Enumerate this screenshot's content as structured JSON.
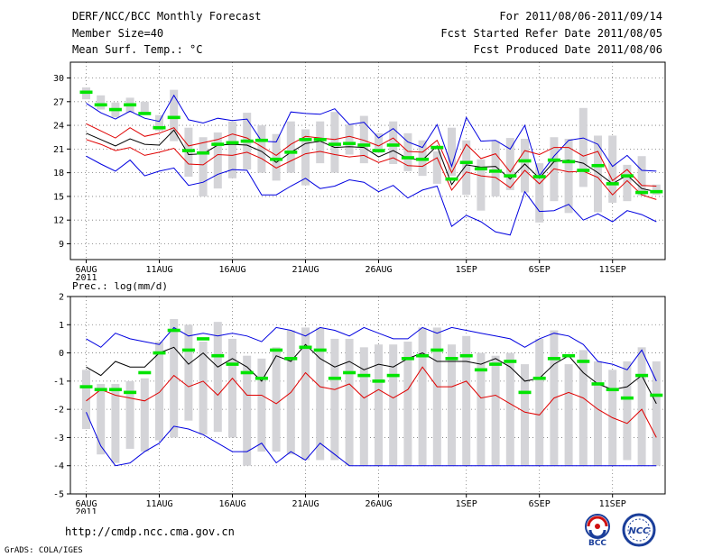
{
  "header": {
    "title": "DERF/NCC/BCC Monthly Forecast",
    "member_size": "Member Size=40",
    "variable": "Mean Surf. Temp.: °C",
    "forecast_period": "For 2011/08/06-2011/09/14",
    "start_date": "Fcst Started Refer Date 2011/08/05",
    "produced_date": "Fcst Produced Date 2011/08/06"
  },
  "footer": {
    "url": "http://cmdp.ncc.cma.gov.cn",
    "credit": "GrADS: COLA/IGES",
    "logo_left_text": "BCC",
    "logo_right_text": "NCC"
  },
  "colors": {
    "box": "#d4d4d8",
    "mean": "#00e400",
    "median": "#000000",
    "band": "#e00000",
    "envelope": "#0000e0"
  },
  "chart_data": [
    {
      "type": "box",
      "title": "Mean Surf. Temp.: °C",
      "ylabel": "°C",
      "ylim": [
        7,
        32
      ],
      "yticks": [
        9,
        12,
        15,
        18,
        21,
        24,
        27,
        30
      ],
      "x_tick_labels": [
        "6AUG",
        "11AUG",
        "16AUG",
        "21AUG",
        "26AUG",
        "1SEP",
        "6SEP",
        "11SEP"
      ],
      "x_tick_days": [
        0,
        5,
        10,
        15,
        20,
        26,
        31,
        36
      ],
      "year_label": "2011",
      "grid": true,
      "days": 40,
      "box_low": [
        27.3,
        26.0,
        25.0,
        25.6,
        25.4,
        23.3,
        22.0,
        17.5,
        15.0,
        16.0,
        17.3,
        18.4,
        18.0,
        17.0,
        18.0,
        16.4,
        19.2,
        18.0,
        20.3,
        19.2,
        20.5,
        19.1,
        18.2,
        17.6,
        16.6,
        17.6,
        15.2,
        13.2,
        15.0,
        15.8,
        15.5,
        11.7,
        14.4,
        12.9,
        16.2,
        13.0,
        14.2,
        14.4,
        15.1,
        15.2
      ],
      "box_high": [
        28.8,
        27.8,
        26.9,
        27.5,
        27.0,
        25.3,
        28.5,
        23.7,
        22.5,
        23.1,
        24.5,
        25.6,
        24.0,
        22.9,
        24.5,
        23.5,
        24.5,
        25.7,
        24.1,
        25.2,
        23.0,
        24.5,
        23.0,
        22.1,
        20.7,
        23.7,
        22.1,
        19.7,
        22.0,
        22.4,
        22.3,
        19.2,
        22.5,
        22.3,
        26.2,
        22.7,
        22.7,
        19.0,
        20.1,
        16.5
      ],
      "mean": [
        28.2,
        26.6,
        26.0,
        26.6,
        25.5,
        23.7,
        25.0,
        20.8,
        20.5,
        21.6,
        21.8,
        22.0,
        22.1,
        19.7,
        20.6,
        22.2,
        22.2,
        21.6,
        21.7,
        21.5,
        20.8,
        21.5,
        19.9,
        19.7,
        21.2,
        17.2,
        19.3,
        18.5,
        18.2,
        17.6,
        19.5,
        17.5,
        19.6,
        19.4,
        18.3,
        18.9,
        16.6,
        17.6,
        15.5,
        15.6
      ],
      "series": [
        {
          "name": "max",
          "role": "envelope",
          "values": [
            26.8,
            25.6,
            24.8,
            25.8,
            24.9,
            24.5,
            27.8,
            24.7,
            24.3,
            24.9,
            24.6,
            24.8,
            22.0,
            21.9,
            25.7,
            25.5,
            25.4,
            26.1,
            24.1,
            24.4,
            22.4,
            23.6,
            21.9,
            21.2,
            24.1,
            18.8,
            25.0,
            22.0,
            22.1,
            21.0,
            24.0,
            17.6,
            20.1,
            22.1,
            22.4,
            21.6,
            18.8,
            20.2,
            18.3,
            18.2
          ]
        },
        {
          "name": "upper",
          "role": "band",
          "values": [
            24.2,
            23.3,
            22.4,
            23.7,
            22.6,
            23.0,
            23.7,
            21.4,
            21.8,
            22.2,
            22.9,
            22.4,
            21.3,
            20.2,
            21.6,
            22.6,
            22.4,
            22.2,
            22.6,
            22.1,
            21.4,
            22.4,
            20.7,
            20.6,
            22.1,
            18.0,
            21.6,
            19.8,
            20.4,
            18.1,
            20.8,
            20.3,
            21.2,
            21.2,
            20.1,
            20.7,
            17.0,
            18.4,
            16.4,
            16.3
          ]
        },
        {
          "name": "median",
          "role": "median",
          "values": [
            23.0,
            22.2,
            21.4,
            22.3,
            21.6,
            21.5,
            23.4,
            20.3,
            20.4,
            21.5,
            21.6,
            21.5,
            20.7,
            19.3,
            20.6,
            21.7,
            22.0,
            21.2,
            21.3,
            21.2,
            20.0,
            20.8,
            19.8,
            19.6,
            21.4,
            16.5,
            19.0,
            18.7,
            18.8,
            17.2,
            19.1,
            17.3,
            19.4,
            19.6,
            19.2,
            18.0,
            16.6,
            17.7,
            16.0,
            15.6
          ]
        },
        {
          "name": "lower",
          "role": "band",
          "values": [
            22.2,
            21.6,
            20.8,
            21.2,
            20.2,
            20.6,
            21.1,
            19.1,
            19.0,
            20.3,
            20.2,
            20.6,
            19.8,
            18.6,
            19.5,
            20.4,
            20.7,
            20.3,
            20.0,
            20.2,
            19.3,
            19.9,
            18.9,
            18.8,
            19.9,
            15.8,
            18.1,
            17.6,
            17.4,
            16.1,
            18.3,
            16.6,
            18.5,
            18.1,
            18.2,
            17.4,
            15.2,
            17.0,
            15.2,
            14.6
          ]
        },
        {
          "name": "min",
          "role": "envelope",
          "values": [
            20.1,
            19.1,
            18.2,
            19.6,
            17.6,
            18.2,
            18.6,
            16.4,
            16.8,
            17.8,
            18.4,
            18.3,
            15.2,
            15.2,
            16.3,
            17.3,
            16.0,
            16.3,
            17.1,
            16.8,
            15.6,
            16.4,
            14.8,
            15.8,
            16.3,
            11.2,
            12.6,
            11.8,
            10.5,
            10.1,
            15.6,
            13.1,
            13.2,
            14.0,
            12.0,
            12.8,
            11.8,
            13.2,
            12.7,
            11.8
          ]
        }
      ]
    },
    {
      "type": "box",
      "title": "Prec.: log(mm/d)",
      "ylabel": "log(mm/d)",
      "ylim": [
        -5,
        2
      ],
      "yticks": [
        -5,
        -4,
        -3,
        -2,
        -1,
        0,
        1,
        2
      ],
      "x_tick_labels": [
        "6AUG",
        "11AUG",
        "16AUG",
        "21AUG",
        "26AUG",
        "1SEP",
        "6SEP",
        "11SEP"
      ],
      "x_tick_days": [
        0,
        5,
        10,
        15,
        20,
        26,
        31,
        36
      ],
      "year_label": "2011",
      "grid": true,
      "days": 40,
      "box_low": [
        -2.7,
        -3.6,
        -3.9,
        -3.4,
        -3.5,
        -3.1,
        -3.0,
        -2.4,
        -2.9,
        -2.8,
        -3.0,
        -4.0,
        -3.5,
        -3.5,
        -3.6,
        -3.8,
        -3.8,
        -3.8,
        -4.0,
        -4.0,
        -4.0,
        -4.0,
        -4.0,
        -4.0,
        -4.0,
        -4.0,
        -4.0,
        -4.0,
        -4.0,
        -4.0,
        -4.0,
        -4.0,
        -4.0,
        -4.0,
        -4.0,
        -4.0,
        -4.0,
        -3.8,
        -4.0,
        -4.0
      ],
      "box_high": [
        -0.6,
        -1.1,
        -1.1,
        -1.0,
        -0.9,
        0.4,
        1.2,
        1.0,
        0.4,
        1.1,
        0.5,
        -0.1,
        -0.2,
        0.2,
        0.8,
        0.9,
        0.9,
        0.5,
        0.5,
        0.2,
        0.3,
        0.3,
        0.4,
        0.9,
        0.9,
        0.3,
        0.6,
        0.0,
        -0.1,
        0.0,
        -0.4,
        0.5,
        0.8,
        -0.4,
        0.1,
        -0.3,
        -0.6,
        -0.3,
        0.2,
        -0.3
      ],
      "mean": [
        -1.2,
        -1.3,
        -1.3,
        -1.4,
        -0.7,
        -0.0,
        0.8,
        0.1,
        0.5,
        -0.1,
        -0.4,
        -0.7,
        -0.9,
        0.1,
        -0.2,
        0.2,
        0.1,
        -0.9,
        -0.7,
        -0.8,
        -1.0,
        -0.8,
        -0.2,
        -0.1,
        0.1,
        -0.2,
        -0.1,
        -0.6,
        -0.4,
        -0.3,
        -1.4,
        -0.9,
        -0.2,
        -0.1,
        -0.3,
        -1.1,
        -1.3,
        -1.6,
        -0.8,
        -1.5
      ],
      "series": [
        {
          "name": "max",
          "role": "envelope",
          "values": [
            0.5,
            0.2,
            0.7,
            0.5,
            0.4,
            0.3,
            0.9,
            0.6,
            0.7,
            0.6,
            0.7,
            0.6,
            0.4,
            0.9,
            0.8,
            0.6,
            0.9,
            0.8,
            0.6,
            0.9,
            0.7,
            0.5,
            0.5,
            0.9,
            0.7,
            0.9,
            0.8,
            0.7,
            0.6,
            0.5,
            0.2,
            0.5,
            0.7,
            0.6,
            0.3,
            -0.3,
            -0.4,
            -0.6,
            0.1,
            -1.0
          ]
        },
        {
          "name": "median",
          "role": "median",
          "values": [
            -0.5,
            -0.8,
            -0.3,
            -0.5,
            -0.5,
            0.0,
            0.2,
            -0.4,
            0.0,
            -0.5,
            -0.2,
            -0.5,
            -1.0,
            -0.1,
            -0.3,
            0.3,
            -0.2,
            -0.5,
            -0.3,
            -0.6,
            -0.4,
            -0.5,
            -0.2,
            0.0,
            -0.3,
            -0.3,
            -0.3,
            -0.4,
            -0.2,
            -0.5,
            -1.0,
            -0.9,
            -0.4,
            -0.1,
            -0.7,
            -1.1,
            -1.3,
            -1.2,
            -0.8,
            -1.8
          ]
        },
        {
          "name": "lower",
          "role": "band",
          "values": [
            -1.7,
            -1.3,
            -1.5,
            -1.6,
            -1.7,
            -1.4,
            -0.8,
            -1.2,
            -1.0,
            -1.5,
            -0.9,
            -1.5,
            -1.5,
            -1.8,
            -1.4,
            -0.7,
            -1.2,
            -1.3,
            -1.1,
            -1.6,
            -1.3,
            -1.6,
            -1.3,
            -0.5,
            -1.2,
            -1.2,
            -1.0,
            -1.6,
            -1.5,
            -1.8,
            -2.1,
            -2.2,
            -1.6,
            -1.4,
            -1.6,
            -2.0,
            -2.3,
            -2.5,
            -2.0,
            -3.0
          ]
        },
        {
          "name": "min",
          "role": "envelope",
          "values": [
            -2.1,
            -3.3,
            -4.0,
            -3.9,
            -3.5,
            -3.2,
            -2.6,
            -2.7,
            -2.9,
            -3.2,
            -3.5,
            -3.5,
            -3.2,
            -3.9,
            -3.5,
            -3.8,
            -3.2,
            -3.6,
            -4.0,
            -4.0,
            -4.0,
            -4.0,
            -4.0,
            -4.0,
            -4.0,
            -4.0,
            -4.0,
            -4.0,
            -4.0,
            -4.0,
            -4.0,
            -4.0,
            -4.0,
            -4.0,
            -4.0,
            -4.0,
            -4.0,
            -4.0,
            -4.0,
            -4.0
          ]
        }
      ]
    }
  ]
}
